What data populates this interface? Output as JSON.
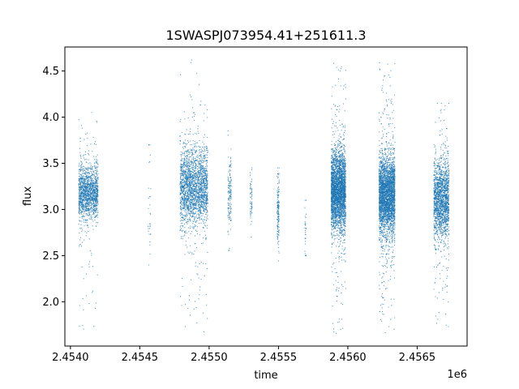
{
  "chart_data": {
    "type": "scatter",
    "title": "1SWASPJ073954.41+251611.3",
    "xlabel": "time",
    "ylabel": "flux",
    "x_offset_label": "1e6",
    "x_scale": 1000000,
    "xlim": [
      2453960,
      2456860
    ],
    "ylim": [
      1.52,
      4.76
    ],
    "x_ticks": [
      2454000,
      2454500,
      2455000,
      2455500,
      2456000,
      2456500
    ],
    "x_tick_labels": [
      "2.4540",
      "2.4545",
      "2.4550",
      "2.4555",
      "2.4560",
      "2.4565"
    ],
    "y_ticks": [
      2.0,
      2.5,
      3.0,
      3.5,
      4.0,
      4.5
    ],
    "y_tick_labels": [
      "2.0",
      "2.5",
      "3.0",
      "3.5",
      "4.0",
      "4.5"
    ],
    "grid": false,
    "marker_color": "#1f77b4",
    "clusters": [
      {
        "start": 2454060,
        "end": 2454200,
        "center": 3.18,
        "spread": 0.14,
        "min": 1.7,
        "max": 4.05,
        "count": 1500
      },
      {
        "start": 2454560,
        "end": 2454580,
        "center": 3.0,
        "spread": 0.4,
        "min": 1.65,
        "max": 3.7,
        "count": 30
      },
      {
        "start": 2454790,
        "end": 2454990,
        "center": 3.25,
        "spread": 0.2,
        "min": 1.65,
        "max": 4.62,
        "count": 2200
      },
      {
        "start": 2455135,
        "end": 2455160,
        "center": 3.15,
        "spread": 0.2,
        "min": 2.55,
        "max": 3.85,
        "count": 150
      },
      {
        "start": 2455295,
        "end": 2455310,
        "center": 3.1,
        "spread": 0.15,
        "min": 2.7,
        "max": 3.45,
        "count": 60
      },
      {
        "start": 2455490,
        "end": 2455505,
        "center": 3.0,
        "spread": 0.2,
        "min": 2.3,
        "max": 3.45,
        "count": 150
      },
      {
        "start": 2455690,
        "end": 2455700,
        "center": 2.8,
        "spread": 0.15,
        "min": 2.5,
        "max": 3.1,
        "count": 30
      },
      {
        "start": 2455880,
        "end": 2455985,
        "center": 3.2,
        "spread": 0.2,
        "min": 1.65,
        "max": 4.62,
        "count": 3200
      },
      {
        "start": 2456225,
        "end": 2456340,
        "center": 3.15,
        "spread": 0.2,
        "min": 1.65,
        "max": 4.62,
        "count": 3200
      },
      {
        "start": 2456620,
        "end": 2456730,
        "center": 3.1,
        "spread": 0.2,
        "min": 1.7,
        "max": 4.15,
        "count": 1800
      }
    ]
  }
}
